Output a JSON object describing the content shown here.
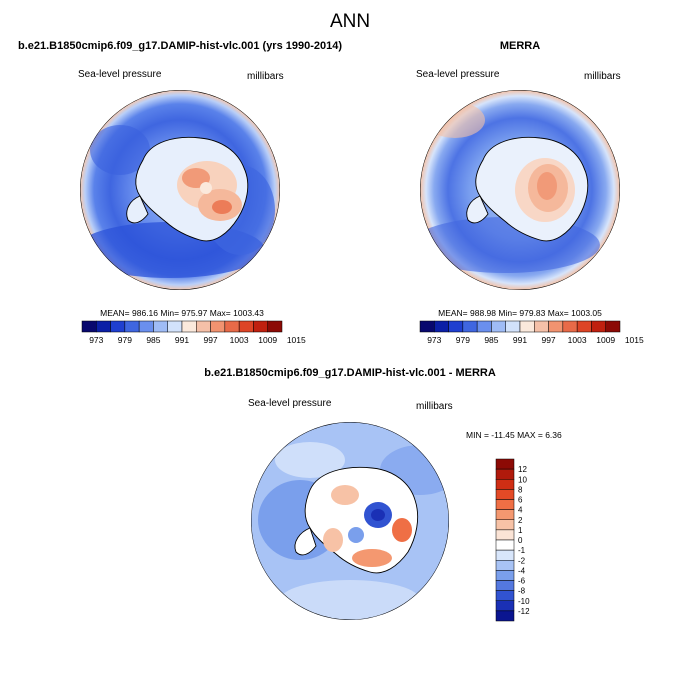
{
  "figure": {
    "title": "ANN"
  },
  "panels": [
    {
      "title": "b.e21.B1850cmip6.f09_g17.DAMIP-hist-vlc.001 (yrs 1990-2014)",
      "left_label": "Sea-level pressure",
      "right_label": "millibars",
      "stats": "MEAN= 986.16  Min= 975.97  Max= 1003.43"
    },
    {
      "title": "MERRA",
      "left_label": "Sea-level pressure",
      "right_label": "millibars",
      "stats": "MEAN= 988.98  Min= 979.83  Max= 1003.05"
    },
    {
      "title": "b.e21.B1850cmip6.f09_g17.DAMIP-hist-vlc.001 - MERRA",
      "left_label": "Sea-level pressure",
      "right_label": "millibars",
      "stats": "MIN = -11.45  MAX =   6.36"
    }
  ],
  "colorbar_abs": {
    "ticks": [
      "973",
      "979",
      "985",
      "991",
      "997",
      "1003",
      "1009",
      "1015"
    ],
    "colors": [
      "#08086e",
      "#0b1fa6",
      "#1f3fd0",
      "#3f66e0",
      "#6a8fee",
      "#9fbcf6",
      "#d2e2fb",
      "#fbe9dc",
      "#f5c0a8",
      "#f19370",
      "#e86a48",
      "#dd4426",
      "#c0200f",
      "#8c0a05"
    ]
  },
  "colorbar_diff": {
    "ticks": [
      "12",
      "10",
      "8",
      "6",
      "4",
      "2",
      "1",
      "0",
      "-1",
      "-2",
      "-4",
      "-6",
      "-8",
      "-10",
      "-12"
    ],
    "colors": [
      "#8c0a05",
      "#b01a0c",
      "#cf2e14",
      "#e34a26",
      "#ef6f45",
      "#f49870",
      "#f7c2a6",
      "#fbe4d6",
      "#ffffff",
      "#d8e6fb",
      "#a8c3f5",
      "#7a9fec",
      "#5478df",
      "#3153d1",
      "#1a30b5",
      "#0a1590"
    ]
  },
  "chart_data": [
    {
      "type": "heatmap",
      "title": "b.e21.B1850cmip6.f09_g17.DAMIP-hist-vlc.001 (yrs 1990-2014)",
      "variable": "Sea-level pressure",
      "units": "millibars",
      "projection": "south polar stereographic",
      "mean": 986.16,
      "min": 975.97,
      "max": 1003.43,
      "contour_levels": [
        973,
        976,
        979,
        982,
        985,
        988,
        991,
        994,
        997,
        1000,
        1003,
        1006,
        1009,
        1012,
        1015
      ]
    },
    {
      "type": "heatmap",
      "title": "MERRA",
      "variable": "Sea-level pressure",
      "units": "millibars",
      "projection": "south polar stereographic",
      "mean": 988.98,
      "min": 979.83,
      "max": 1003.05,
      "contour_levels": [
        973,
        976,
        979,
        982,
        985,
        988,
        991,
        994,
        997,
        1000,
        1003,
        1006,
        1009,
        1012,
        1015
      ]
    },
    {
      "type": "heatmap",
      "title": "b.e21.B1850cmip6.f09_g17.DAMIP-hist-vlc.001 - MERRA",
      "variable": "Sea-level pressure",
      "units": "millibars",
      "projection": "south polar stereographic",
      "min": -11.45,
      "max": 6.36,
      "contour_levels": [
        -12,
        -10,
        -8,
        -6,
        -4,
        -2,
        -1,
        0,
        1,
        2,
        4,
        6,
        8,
        10,
        12
      ]
    }
  ]
}
